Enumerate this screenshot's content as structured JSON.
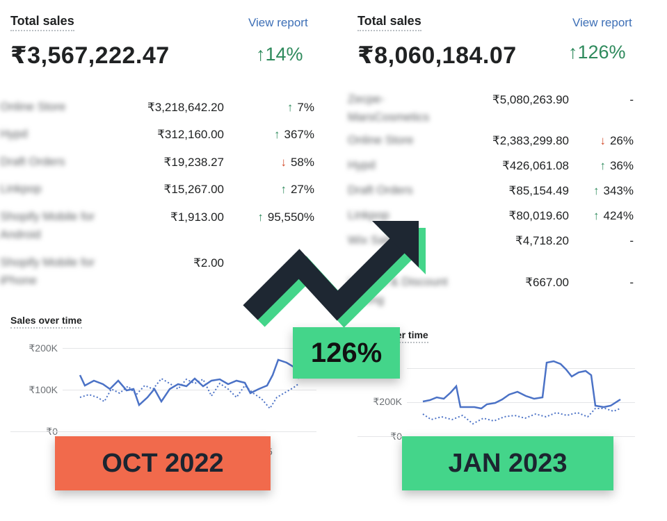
{
  "colors": {
    "accent_green": "#44d58a",
    "accent_orange": "#f16a4c",
    "link": "#3d6fb6",
    "up": "#2e8a5c",
    "down": "#d24a2a",
    "line": "#4b72c6"
  },
  "left": {
    "title": "Total sales",
    "view_report": "View report",
    "total": "₹3,567,222.47",
    "change": "↑14%",
    "rows": [
      {
        "name": "Online Store",
        "value": "₹3,218,642.20",
        "arrow": "↑",
        "pct": "7%"
      },
      {
        "name": "Hypd",
        "value": "₹312,160.00",
        "arrow": "↑",
        "pct": "367%"
      },
      {
        "name": "Draft Orders",
        "value": "₹19,238.27",
        "arrow": "↓",
        "pct": "58%"
      },
      {
        "name": "Linkpop",
        "value": "₹15,267.00",
        "arrow": "↑",
        "pct": "27%"
      },
      {
        "name": "Shopify Mobile for Android",
        "value": "₹1,913.00",
        "arrow": "↑",
        "pct": "95,550%"
      },
      {
        "name": "Shopify Mobile for iPhone",
        "value": "₹2.00",
        "arrow": "",
        "pct": ""
      }
    ],
    "chart_title": "Sales over time",
    "ticks": [
      "₹200K",
      "₹100K",
      "₹0"
    ],
    "x_tick": "5"
  },
  "right": {
    "title": "Total sales",
    "view_report": "View report",
    "total": "₹8,060,184.07",
    "change": "↑126%",
    "rows": [
      {
        "name": "Zecpe-MarsCosmetics",
        "value": "₹5,080,263.90",
        "arrow": "",
        "pct": "-"
      },
      {
        "name": "Online Store",
        "value": "₹2,383,299.80",
        "arrow": "↓",
        "pct": "26%"
      },
      {
        "name": "Hypd",
        "value": "₹426,061.08",
        "arrow": "↑",
        "pct": "36%"
      },
      {
        "name": "Draft Orders",
        "value": "₹85,154.49",
        "arrow": "↑",
        "pct": "343%"
      },
      {
        "name": "Linkpop",
        "value": "₹80,019.60",
        "arrow": "↑",
        "pct": "424%"
      },
      {
        "name": "Wix Sales C",
        "value": "₹4,718.20",
        "arrow": "",
        "pct": "-"
      },
      {
        "name": "Volume & Discount Pricing",
        "value": "₹667.00",
        "arrow": "",
        "pct": "-"
      }
    ],
    "chart_title": "ver time",
    "ticks": [
      "₹200K",
      "₹0"
    ]
  },
  "overlay": {
    "left_badge": "OCT 2022",
    "right_badge": "JAN 2023",
    "growth": "126%"
  }
}
